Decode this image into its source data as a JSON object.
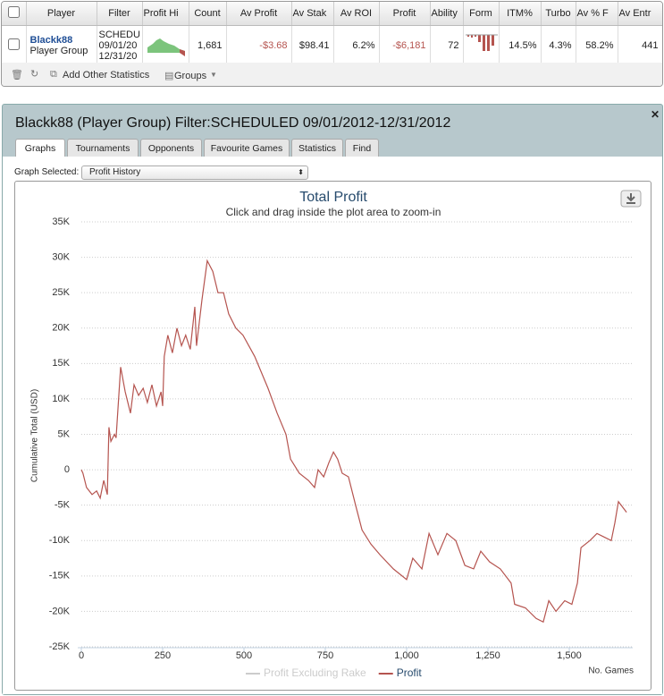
{
  "table": {
    "headers": [
      "Player",
      "Filter",
      "Profit Hi",
      "Count",
      "Av Profit",
      "Av Stak",
      "Av ROI",
      "Profit",
      "Ability",
      "Form",
      "ITM%",
      "Turbo",
      "Av % F",
      "Av Entr"
    ],
    "row": {
      "player": [
        "Blackk88",
        "Player Group"
      ],
      "filter": [
        "SCHEDU",
        "09/01/20",
        "12/31/20"
      ],
      "cells": {
        "count": "1,681",
        "av_profit": "-$3.68",
        "av_stake": "$98.41",
        "av_roi": "6.2%",
        "profit": "-$6,181",
        "ability": "72",
        "itm": "14.5%",
        "turbo": "4.3%",
        "av_f": "58.2%",
        "av_entr": "441"
      }
    }
  },
  "toolbar": {
    "add": "Add Other Statistics",
    "groups": "Groups"
  },
  "panel": {
    "title": "Blackk88 (Player Group) Filter:SCHEDULED 09/01/2012-12/31/2012",
    "tabs": [
      "Graphs",
      "Tournaments",
      "Opponents",
      "Favourite Games",
      "Statistics",
      "Find"
    ],
    "graph_label": "Graph Selected:",
    "graph_value": "Profit History"
  },
  "chart_data": {
    "type": "line",
    "title": "Total Profit",
    "subtitle": "Click and drag inside the plot area to zoom-in",
    "y_label": "Cumulative Total (USD)",
    "x_label": "No. Games",
    "grid": true,
    "legend": "bottom",
    "xlim": [
      0,
      1695
    ],
    "xticks": [
      0,
      250,
      500,
      750,
      {
        "value": 1000,
        "label": "1,000"
      },
      {
        "value": 1250,
        "label": "1,250"
      },
      {
        "value": 1500,
        "label": "1,500"
      }
    ],
    "ylim": [
      -25000,
      35000
    ],
    "yticks": [
      {
        "value": 35000,
        "label": "35K"
      },
      {
        "value": 30000,
        "label": "30K"
      },
      {
        "value": 25000,
        "label": "25K"
      },
      {
        "value": 20000,
        "label": "20K"
      },
      {
        "value": 15000,
        "label": "15K"
      },
      {
        "value": 10000,
        "label": "10K"
      },
      {
        "value": 5000,
        "label": "5K"
      },
      0,
      {
        "value": -5000,
        "label": "-5K"
      },
      {
        "value": -10000,
        "label": "-10K"
      },
      {
        "value": -15000,
        "label": "-15K"
      },
      {
        "value": -20000,
        "label": "-20K"
      },
      {
        "value": -25000,
        "label": "-25K"
      }
    ],
    "x": [
      0,
      5,
      16,
      33,
      47,
      58,
      69,
      80,
      85,
      91,
      102,
      107,
      121,
      135,
      151,
      162,
      176,
      190,
      203,
      217,
      231,
      245,
      250,
      255,
      266,
      280,
      294,
      308,
      321,
      335,
      349,
      354,
      371,
      387,
      404,
      420,
      437,
      453,
      475,
      497,
      533,
      574,
      602,
      629,
      643,
      670,
      698,
      717,
      728,
      745,
      761,
      775,
      788,
      802,
      821,
      843,
      863,
      890,
      918,
      959,
      1000,
      1019,
      1047,
      1069,
      1096,
      1124,
      1151,
      1179,
      1206,
      1228,
      1255,
      1288,
      1321,
      1332,
      1365,
      1398,
      1420,
      1437,
      1459,
      1486,
      1508,
      1525,
      1536,
      1563,
      1585,
      1607,
      1629,
      1640,
      1651,
      1676
    ],
    "series": [
      {
        "name": "Profit Excluding Rake",
        "color": "#cccccc",
        "visible": false,
        "values": [
          null,
          null,
          null,
          null,
          null,
          null,
          null,
          null,
          null,
          null,
          null,
          null,
          null,
          null,
          null,
          null,
          null,
          null,
          null,
          null,
          null,
          null,
          null,
          null,
          null,
          null,
          null,
          null,
          null,
          null,
          null,
          null,
          null,
          null,
          null,
          null,
          null,
          null,
          null,
          null,
          null,
          null,
          null,
          null,
          null,
          null,
          null,
          null,
          null,
          null,
          null,
          null,
          null,
          null,
          null,
          null,
          null,
          null,
          null,
          null,
          null,
          null,
          null,
          null,
          null,
          null,
          null,
          null,
          null,
          null,
          null,
          null,
          null,
          null,
          null,
          null,
          null,
          null,
          null,
          null,
          null,
          null,
          null,
          null,
          null,
          null,
          null,
          null,
          null,
          null
        ]
      },
      {
        "name": "Profit",
        "color": "#b5544f",
        "visible": true,
        "values": [
          0,
          -500,
          -2500,
          -3500,
          -3000,
          -4000,
          -1500,
          -3500,
          6000,
          4000,
          5000,
          4500,
          14500,
          11000,
          8000,
          12000,
          10500,
          11500,
          9500,
          12000,
          9000,
          11000,
          9000,
          16000,
          19000,
          16500,
          20000,
          17500,
          19000,
          17000,
          23000,
          17500,
          24000,
          29500,
          28000,
          25000,
          25000,
          22000,
          20000,
          19000,
          16000,
          11500,
          8000,
          5000,
          1500,
          -500,
          -1500,
          -2500,
          0,
          -1000,
          1000,
          2500,
          1500,
          -500,
          -1000,
          -5000,
          -8500,
          -10500,
          -12000,
          -14000,
          -15500,
          -12500,
          -14000,
          -9000,
          -12000,
          -9000,
          -10000,
          -13500,
          -14000,
          -11500,
          -13000,
          -14000,
          -16000,
          -19000,
          -19500,
          -21000,
          -21500,
          -18500,
          -20000,
          -18500,
          -19000,
          -16000,
          -11000,
          -10000,
          -9000,
          -9500,
          -10000,
          -7500,
          -4500,
          -6000
        ]
      }
    ]
  }
}
